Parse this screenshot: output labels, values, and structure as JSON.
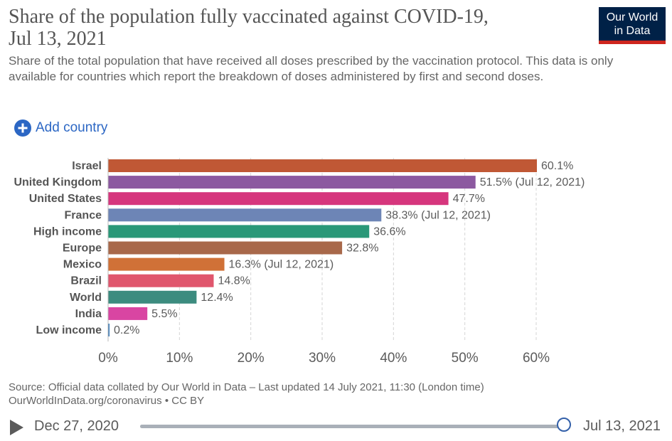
{
  "header": {
    "title_line1": "Share of the population fully vaccinated against COVID-19,",
    "title_line2": "Jul 13, 2021",
    "subtitle": "Share of the total population that have received all doses prescribed by the vaccination protocol. This data is only available for countries which report the breakdown of doses administered by first and second doses.",
    "logo_line1": "Our World",
    "logo_line2": "in Data"
  },
  "controls": {
    "add_country_label": "Add country"
  },
  "colors": {
    "brand_navy": "#002147",
    "brand_red": "#ce261e",
    "link_blue": "#2c67c4"
  },
  "chart_data": {
    "type": "bar",
    "orientation": "horizontal",
    "xlim": [
      0,
      60
    ],
    "x_ticks": [
      "0%",
      "10%",
      "20%",
      "30%",
      "40%",
      "50%",
      "60%"
    ],
    "x_tick_values": [
      0,
      10,
      20,
      30,
      40,
      50,
      60
    ],
    "grid": true,
    "bars": [
      {
        "category": "Israel",
        "value": 60.1,
        "label": "60.1%",
        "color": "#c05835"
      },
      {
        "category": "United Kingdom",
        "value": 51.5,
        "label": "51.5% (Jul 12, 2021)",
        "color": "#8c59a0"
      },
      {
        "category": "United States",
        "value": 47.7,
        "label": "47.7%",
        "color": "#d6367d"
      },
      {
        "category": "France",
        "value": 38.3,
        "label": "38.3% (Jul 12, 2021)",
        "color": "#6d85b6"
      },
      {
        "category": "High income",
        "value": 36.6,
        "label": "36.6%",
        "color": "#2a9878"
      },
      {
        "category": "Europe",
        "value": 32.8,
        "label": "32.8%",
        "color": "#a8684a"
      },
      {
        "category": "Mexico",
        "value": 16.3,
        "label": "16.3% (Jul 12, 2021)",
        "color": "#d07137"
      },
      {
        "category": "Brazil",
        "value": 14.8,
        "label": "14.8%",
        "color": "#e0566d"
      },
      {
        "category": "World",
        "value": 12.4,
        "label": "12.4%",
        "color": "#3c8c7f"
      },
      {
        "category": "India",
        "value": 5.5,
        "label": "5.5%",
        "color": "#d945a2"
      },
      {
        "category": "Low income",
        "value": 0.2,
        "label": "0.2%",
        "color": "#3a7bb8"
      }
    ]
  },
  "footer": {
    "source_line1": "Source: Official data collated by Our World in Data – Last updated 14 July 2021, 11:30 (London time)",
    "source_line2": "OurWorldInData.org/coronavirus • CC BY"
  },
  "timeline": {
    "start_date": "Dec 27, 2020",
    "end_date": "Jul 13, 2021",
    "position_fraction": 1.0
  }
}
